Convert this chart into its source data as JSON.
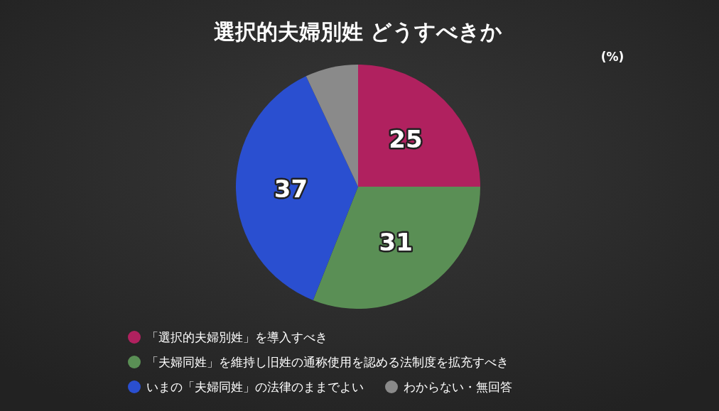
{
  "chart_data": {
    "type": "pie",
    "title": "選択的夫婦別姓 どうすべきか",
    "categories": [
      "「選択的夫婦別姓」を導入すべき",
      "「夫婦同姓」を維持し旧姓の通称使用を認める法制度を拡充すべき",
      "いまの「夫婦同姓」の法律のままでよい",
      "わからない・無回答"
    ],
    "values": [
      25,
      31,
      37,
      7
    ],
    "colors": [
      "#b0215f",
      "#5a8f55",
      "#2a4fd0",
      "#8a8a8a"
    ],
    "value_labels": [
      "25",
      "31",
      "37",
      null
    ],
    "legend": "bottom",
    "annotations": [
      "(%)"
    ]
  }
}
